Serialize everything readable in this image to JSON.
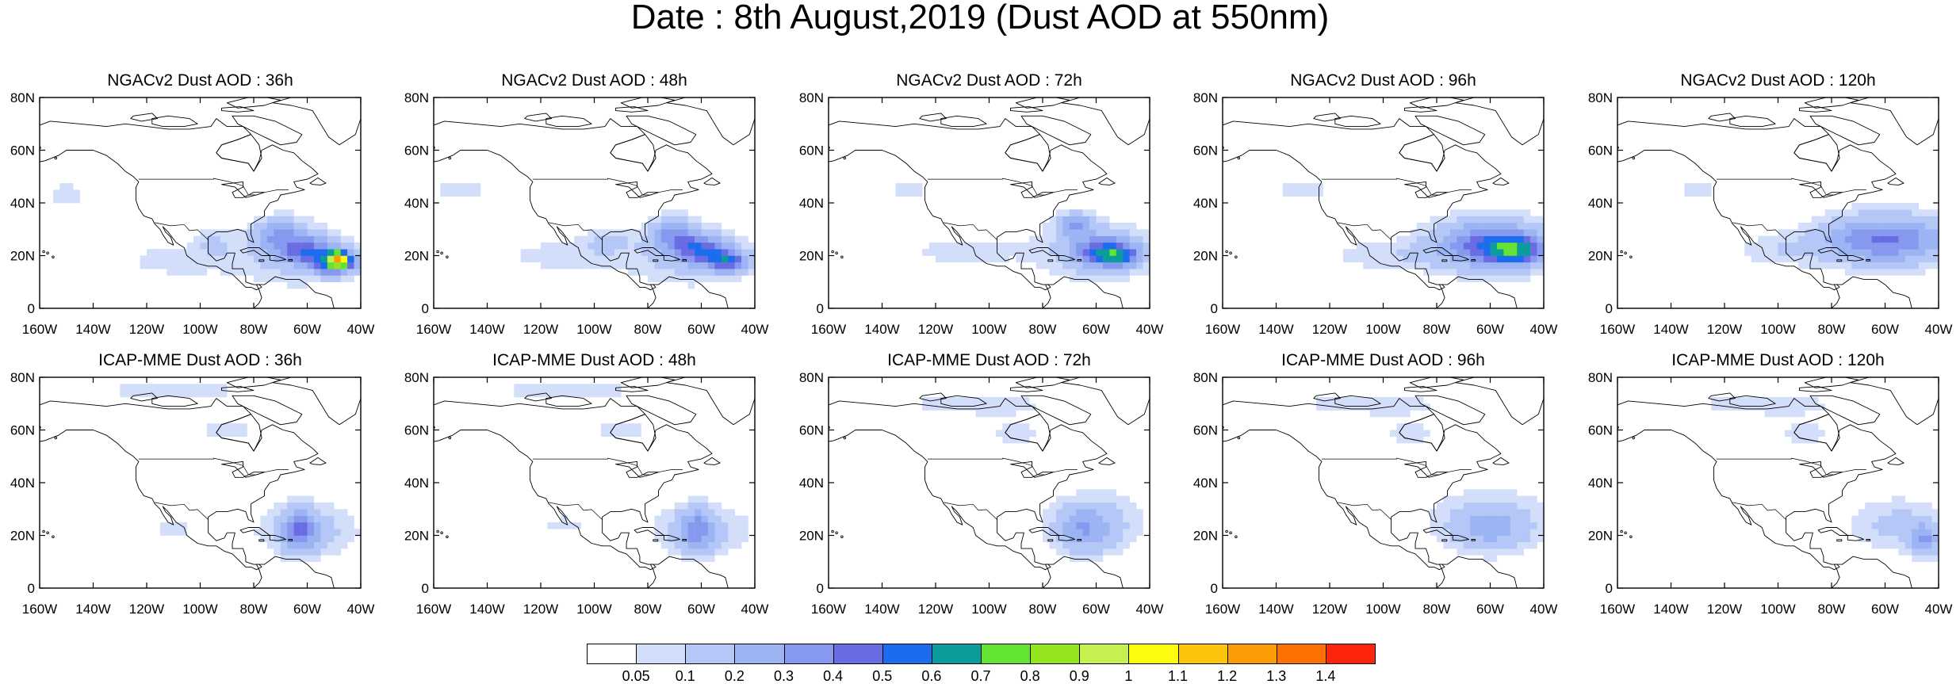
{
  "title": "Date : 8th August,2019 (Dust AOD at 550nm)",
  "axes": {
    "x_ticks": [
      "160W",
      "140W",
      "120W",
      "100W",
      "80W",
      "60W",
      "40W"
    ],
    "y_ticks": [
      "80N",
      "60N",
      "40N",
      "20N",
      "0"
    ],
    "lon_range": [
      -160,
      -40
    ],
    "lat_range": [
      0,
      80
    ]
  },
  "panels": [
    {
      "title": "NGACv2 Dust AOD : 36h",
      "model": "NGACv2",
      "lead": "36h",
      "blobs": [
        [
          -70,
          28,
          9,
          6,
          0.25
        ],
        [
          -60,
          22,
          10,
          5,
          0.35
        ],
        [
          -50,
          17,
          8,
          4,
          0.5
        ],
        [
          -48,
          19,
          4,
          3,
          0.7
        ],
        [
          -65,
          20,
          25,
          12,
          0.12
        ],
        [
          -110,
          18,
          20,
          6,
          0.08
        ],
        [
          -150,
          43,
          10,
          6,
          0.07
        ],
        [
          -95,
          25,
          8,
          5,
          0.08
        ]
      ]
    },
    {
      "title": "NGACv2 Dust AOD : 48h",
      "model": "NGACv2",
      "lead": "48h",
      "blobs": [
        [
          -70,
          28,
          8,
          6,
          0.3
        ],
        [
          -60,
          22,
          9,
          5,
          0.4
        ],
        [
          -50,
          18,
          7,
          4,
          0.45
        ],
        [
          -65,
          20,
          25,
          12,
          0.12
        ],
        [
          -112,
          20,
          22,
          6,
          0.08
        ],
        [
          -150,
          45,
          12,
          6,
          0.07
        ],
        [
          -95,
          26,
          10,
          5,
          0.08
        ]
      ]
    },
    {
      "title": "NGACv2 Dust AOD : 72h",
      "model": "NGACv2",
      "lead": "72h",
      "blobs": [
        [
          -68,
          32,
          6,
          4,
          0.3
        ],
        [
          -58,
          22,
          12,
          6,
          0.32
        ],
        [
          -52,
          20,
          8,
          4,
          0.38
        ],
        [
          -60,
          22,
          24,
          12,
          0.12
        ],
        [
          -110,
          22,
          22,
          6,
          0.08
        ],
        [
          -130,
          45,
          10,
          5,
          0.07
        ]
      ]
    },
    {
      "title": "NGACv2 Dust AOD : 96h",
      "model": "NGACv2",
      "lead": "96h",
      "blobs": [
        [
          -60,
          24,
          18,
          8,
          0.35
        ],
        [
          -50,
          22,
          10,
          5,
          0.4
        ],
        [
          -60,
          24,
          26,
          12,
          0.13
        ],
        [
          -100,
          20,
          22,
          6,
          0.08
        ],
        [
          -130,
          45,
          12,
          6,
          0.07
        ]
      ]
    },
    {
      "title": "NGACv2 Dust AOD : 120h",
      "model": "NGACv2",
      "lead": "120h",
      "blobs": [
        [
          -60,
          26,
          22,
          8,
          0.3
        ],
        [
          -60,
          26,
          28,
          12,
          0.12
        ],
        [
          -100,
          22,
          18,
          6,
          0.08
        ],
        [
          -130,
          45,
          10,
          5,
          0.07
        ]
      ]
    },
    {
      "title": "ICAP-MME Dust AOD : 36h",
      "model": "ICAP-MME",
      "lead": "36h",
      "blobs": [
        [
          -63,
          22,
          6,
          8,
          0.3
        ],
        [
          -60,
          22,
          18,
          10,
          0.15
        ],
        [
          -110,
          75,
          40,
          4,
          0.07
        ],
        [
          -90,
          60,
          12,
          6,
          0.07
        ],
        [
          -110,
          22,
          10,
          4,
          0.07
        ]
      ]
    },
    {
      "title": "ICAP-MME Dust AOD : 48h",
      "model": "ICAP-MME",
      "lead": "48h",
      "blobs": [
        [
          -62,
          22,
          6,
          8,
          0.25
        ],
        [
          -60,
          22,
          18,
          10,
          0.14
        ],
        [
          -110,
          75,
          40,
          4,
          0.07
        ],
        [
          -90,
          60,
          12,
          6,
          0.07
        ],
        [
          -112,
          24,
          10,
          4,
          0.07
        ]
      ]
    },
    {
      "title": "ICAP-MME Dust AOD : 72h",
      "model": "ICAP-MME",
      "lead": "72h",
      "blobs": [
        [
          -65,
          22,
          10,
          8,
          0.2
        ],
        [
          -60,
          25,
          18,
          12,
          0.13
        ],
        [
          -105,
          70,
          38,
          6,
          0.07
        ],
        [
          -90,
          58,
          12,
          6,
          0.07
        ]
      ]
    },
    {
      "title": "ICAP-MME Dust AOD : 96h",
      "model": "ICAP-MME",
      "lead": "96h",
      "blobs": [
        [
          -60,
          22,
          14,
          8,
          0.15
        ],
        [
          -60,
          26,
          22,
          12,
          0.12
        ],
        [
          -105,
          70,
          38,
          6,
          0.07
        ],
        [
          -90,
          58,
          12,
          6,
          0.07
        ]
      ]
    },
    {
      "title": "ICAP-MME Dust AOD : 120h",
      "model": "ICAP-MME",
      "lead": "120h",
      "blobs": [
        [
          -45,
          18,
          5,
          6,
          0.28
        ],
        [
          -55,
          24,
          18,
          10,
          0.13
        ],
        [
          -105,
          70,
          38,
          6,
          0.07
        ],
        [
          -90,
          58,
          12,
          6,
          0.07
        ]
      ]
    }
  ],
  "colorbar": {
    "levels": [
      "0.05",
      "0.1",
      "0.2",
      "0.3",
      "0.4",
      "0.5",
      "0.6",
      "0.7",
      "0.8",
      "0.9",
      "1",
      "1.1",
      "1.2",
      "1.3",
      "1.4"
    ],
    "thresholds": [
      0.05,
      0.1,
      0.2,
      0.3,
      0.4,
      0.5,
      0.6,
      0.7,
      0.8,
      0.9,
      1,
      1.1,
      1.2,
      1.3,
      1.4
    ],
    "colors": [
      "#ffffff",
      "#d3defa",
      "#b4c7f6",
      "#9cb4f4",
      "#8699ef",
      "#6a6ce4",
      "#1c6cee",
      "#0c9c9c",
      "#64e432",
      "#94e420",
      "#c4f050",
      "#fcfc0c",
      "#fcc40c",
      "#fc9c04",
      "#fc7004",
      "#fc240c"
    ]
  }
}
